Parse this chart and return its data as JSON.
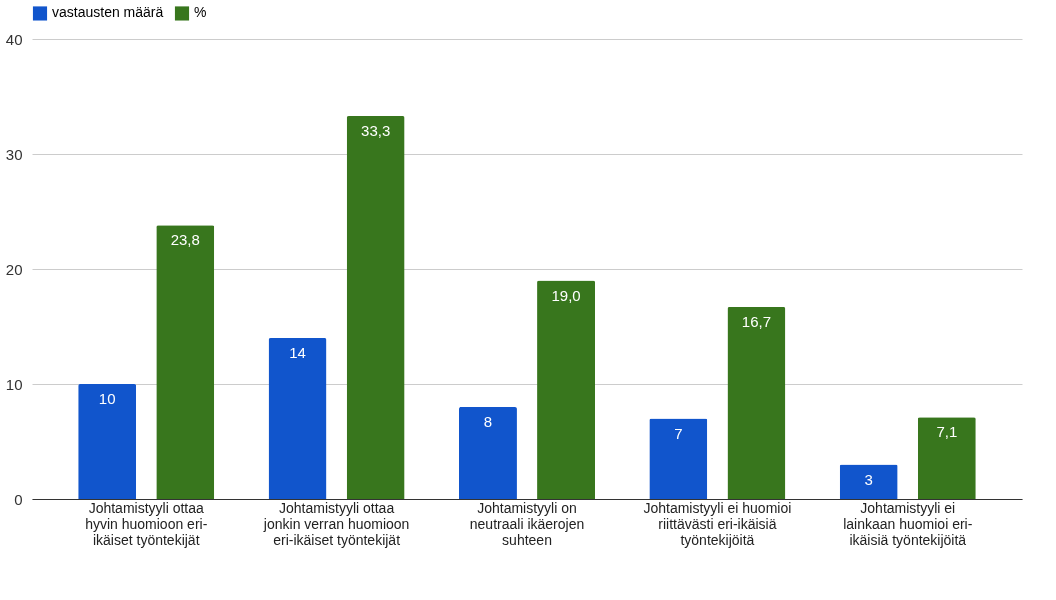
{
  "chart_data": {
    "type": "bar",
    "categories": [
      "Johtamistyyli ottaa hyvin huomioon eri-ikäiset työntekijät",
      "Johtamistyyli ottaa jonkin verran huomioon eri-ikäiset työntekijät",
      "Johtamistyyli on neutraali ikäerojen suhteen",
      "Johtamistyyli ei huomioi riittävästi eri-ikäisiä työntekijöitä",
      "Johtamistyyli ei lainkaan huomioi eri-ikäisiä työntekijöitä"
    ],
    "series": [
      {
        "name": "vastausten määrä",
        "color": "#1155cc",
        "values": [
          10,
          14,
          8,
          7,
          3
        ],
        "value_labels": [
          "10",
          "14",
          "8",
          "7",
          "3"
        ]
      },
      {
        "name": "%",
        "color": "#38761d",
        "values": [
          23.8,
          33.3,
          19.0,
          16.7,
          7.1
        ],
        "value_labels": [
          "23,8",
          "33,3",
          "19,0",
          "16,7",
          "7,1"
        ]
      }
    ],
    "ylim": [
      0,
      40
    ],
    "yticks": [
      0,
      10,
      20,
      30,
      40
    ],
    "grid": "y",
    "legend": "top"
  }
}
